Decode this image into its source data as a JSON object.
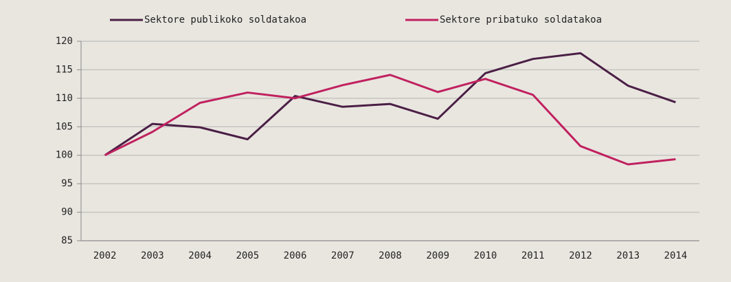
{
  "chart_data": {
    "type": "line",
    "categories": [
      "2002",
      "2003",
      "2004",
      "2005",
      "2006",
      "2007",
      "2008",
      "2009",
      "2010",
      "2011",
      "2012",
      "2013",
      "2014"
    ],
    "series": [
      {
        "name": "Sektore publikoko soldatakoa",
        "color": "#4a1f45",
        "values": [
          100,
          105.5,
          104.9,
          102.8,
          110.4,
          108.5,
          109,
          106.4,
          114.4,
          116.9,
          117.9,
          112.2,
          109.3
        ]
      },
      {
        "name": "Sektore pribatuko soldatakoa",
        "color": "#c0215f",
        "values": [
          100,
          104.1,
          109.2,
          111,
          110,
          112.3,
          114.1,
          111.1,
          113.4,
          110.6,
          101.6,
          98.4,
          99.3
        ]
      }
    ],
    "ylim": [
      85,
      120
    ],
    "yticks": [
      85,
      90,
      95,
      100,
      105,
      110,
      115,
      120
    ],
    "grid": true,
    "legend": "top"
  }
}
